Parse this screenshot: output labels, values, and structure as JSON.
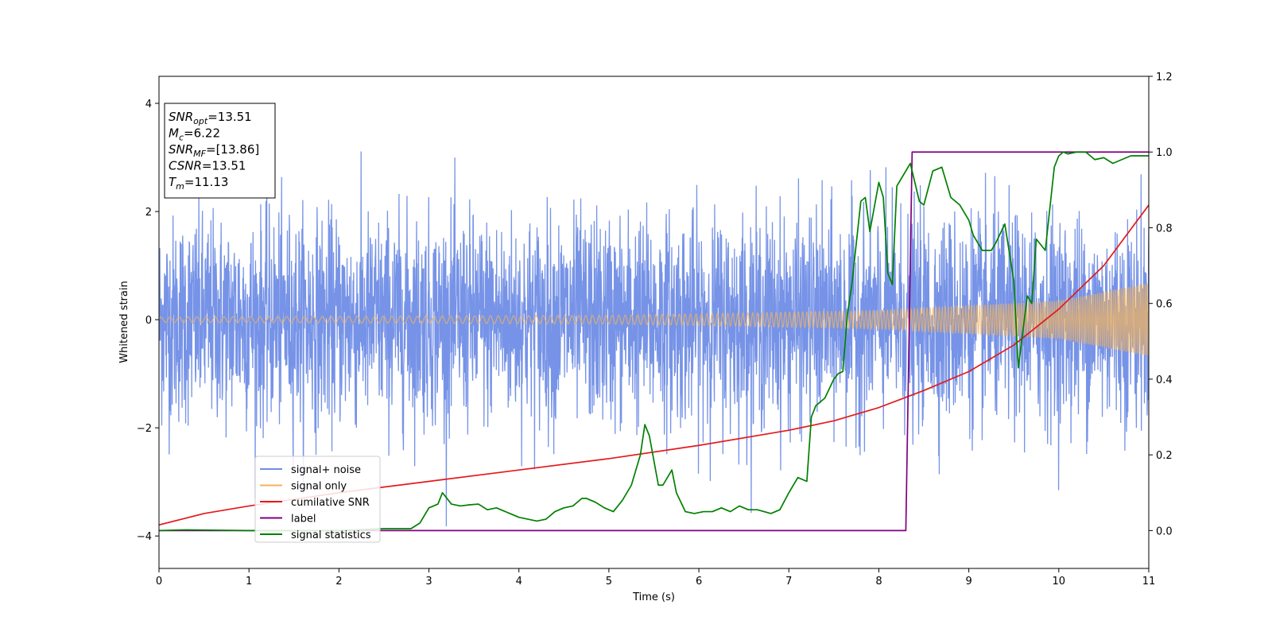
{
  "chart_data": {
    "type": "line",
    "xlabel": "Time (s)",
    "ylabel": "Whitened strain",
    "xlim": [
      0,
      11
    ],
    "ylim_left": [
      -4.6,
      4.5
    ],
    "ylim_right": [
      -0.1,
      1.2
    ],
    "x_ticks": [
      "0",
      "1",
      "2",
      "3",
      "4",
      "5",
      "6",
      "7",
      "8",
      "9",
      "10",
      "11"
    ],
    "y_ticks_left": [
      "−4",
      "−2",
      "0",
      "2",
      "4"
    ],
    "y_ticks_right": [
      "0.0",
      "0.2",
      "0.4",
      "0.6",
      "0.8",
      "1.0",
      "1.2"
    ],
    "grid": false,
    "legend_position": "lower-left",
    "info_box": {
      "lines": [
        {
          "main": "SNR",
          "sub": "opt",
          "rest": "=13.51"
        },
        {
          "main": "M",
          "sub": "c",
          "rest": "=6.22"
        },
        {
          "main": "SNR",
          "sub": "MF",
          "rest": "=[13.86]"
        },
        {
          "main": "CSNR",
          "sub": "",
          "rest": "=13.51"
        },
        {
          "main": "T",
          "sub": "m",
          "rest": "=11.13"
        }
      ]
    },
    "series": [
      {
        "name": "signal+ noise",
        "color": "#6f8de6",
        "axis": "left",
        "kind": "noise",
        "amplitude_std": 0.95,
        "max_abs": 4.1
      },
      {
        "name": "signal only",
        "color": "#f5b35a",
        "axis": "left",
        "kind": "chirp",
        "amplitude": [
          [
            0,
            0.05
          ],
          [
            5,
            0.08
          ],
          [
            8,
            0.17
          ],
          [
            10,
            0.35
          ],
          [
            11,
            0.68
          ]
        ]
      },
      {
        "name": "cumilative SNR",
        "color": "#e31a1c",
        "axis": "right",
        "x": [
          0,
          0.5,
          1,
          2,
          3,
          4,
          5,
          6,
          7,
          7.5,
          8,
          8.5,
          9,
          9.5,
          10,
          10.5,
          11
        ],
        "y": [
          0.015,
          0.045,
          0.065,
          0.1,
          0.13,
          0.16,
          0.19,
          0.225,
          0.265,
          0.29,
          0.325,
          0.37,
          0.42,
          0.49,
          0.585,
          0.7,
          0.86
        ]
      },
      {
        "name": "label",
        "color": "#800080",
        "axis": "right",
        "x": [
          0,
          8.3,
          8.37,
          11
        ],
        "y": [
          0,
          0,
          1,
          1
        ]
      },
      {
        "name": "signal statistics",
        "color": "#008000",
        "axis": "right",
        "x": [
          0,
          0.3,
          1,
          2,
          2.5,
          2.8,
          2.9,
          3.0,
          3.1,
          3.15,
          3.25,
          3.35,
          3.45,
          3.55,
          3.65,
          3.75,
          3.9,
          4.0,
          4.1,
          4.2,
          4.3,
          4.4,
          4.5,
          4.6,
          4.7,
          4.75,
          4.85,
          4.95,
          5.05,
          5.15,
          5.25,
          5.35,
          5.4,
          5.45,
          5.55,
          5.6,
          5.7,
          5.75,
          5.85,
          5.95,
          6.05,
          6.15,
          6.25,
          6.35,
          6.45,
          6.55,
          6.65,
          6.8,
          6.9,
          7.0,
          7.1,
          7.2,
          7.25,
          7.3,
          7.4,
          7.5,
          7.55,
          7.6,
          7.65,
          7.7,
          7.8,
          7.85,
          7.9,
          8.0,
          8.05,
          8.1,
          8.15,
          8.2,
          8.25,
          8.35,
          8.45,
          8.5,
          8.6,
          8.7,
          8.8,
          8.9,
          9.0,
          9.05,
          9.15,
          9.25,
          9.3,
          9.4,
          9.5,
          9.55,
          9.65,
          9.7,
          9.75,
          9.85,
          9.95,
          10.0,
          10.05,
          10.1,
          10.2,
          10.3,
          10.4,
          10.5,
          10.6,
          10.7,
          10.8,
          10.9,
          11.0
        ],
        "y": [
          0.0,
          0.002,
          0.0,
          0.0,
          0.005,
          0.005,
          0.02,
          0.06,
          0.07,
          0.1,
          0.07,
          0.065,
          0.068,
          0.07,
          0.055,
          0.06,
          0.045,
          0.035,
          0.03,
          0.025,
          0.03,
          0.05,
          0.06,
          0.065,
          0.085,
          0.085,
          0.075,
          0.06,
          0.05,
          0.08,
          0.12,
          0.2,
          0.28,
          0.25,
          0.12,
          0.12,
          0.16,
          0.1,
          0.05,
          0.045,
          0.05,
          0.05,
          0.06,
          0.05,
          0.065,
          0.055,
          0.055,
          0.045,
          0.055,
          0.1,
          0.14,
          0.13,
          0.3,
          0.33,
          0.35,
          0.4,
          0.415,
          0.42,
          0.57,
          0.65,
          0.87,
          0.88,
          0.79,
          0.92,
          0.88,
          0.68,
          0.65,
          0.91,
          0.93,
          0.97,
          0.87,
          0.86,
          0.95,
          0.96,
          0.88,
          0.86,
          0.82,
          0.78,
          0.74,
          0.74,
          0.76,
          0.81,
          0.66,
          0.43,
          0.62,
          0.6,
          0.77,
          0.74,
          0.96,
          0.99,
          1.0,
          0.995,
          1.0,
          1.0,
          0.98,
          0.985,
          0.97,
          0.98,
          0.99,
          0.99,
          0.99
        ]
      }
    ]
  }
}
